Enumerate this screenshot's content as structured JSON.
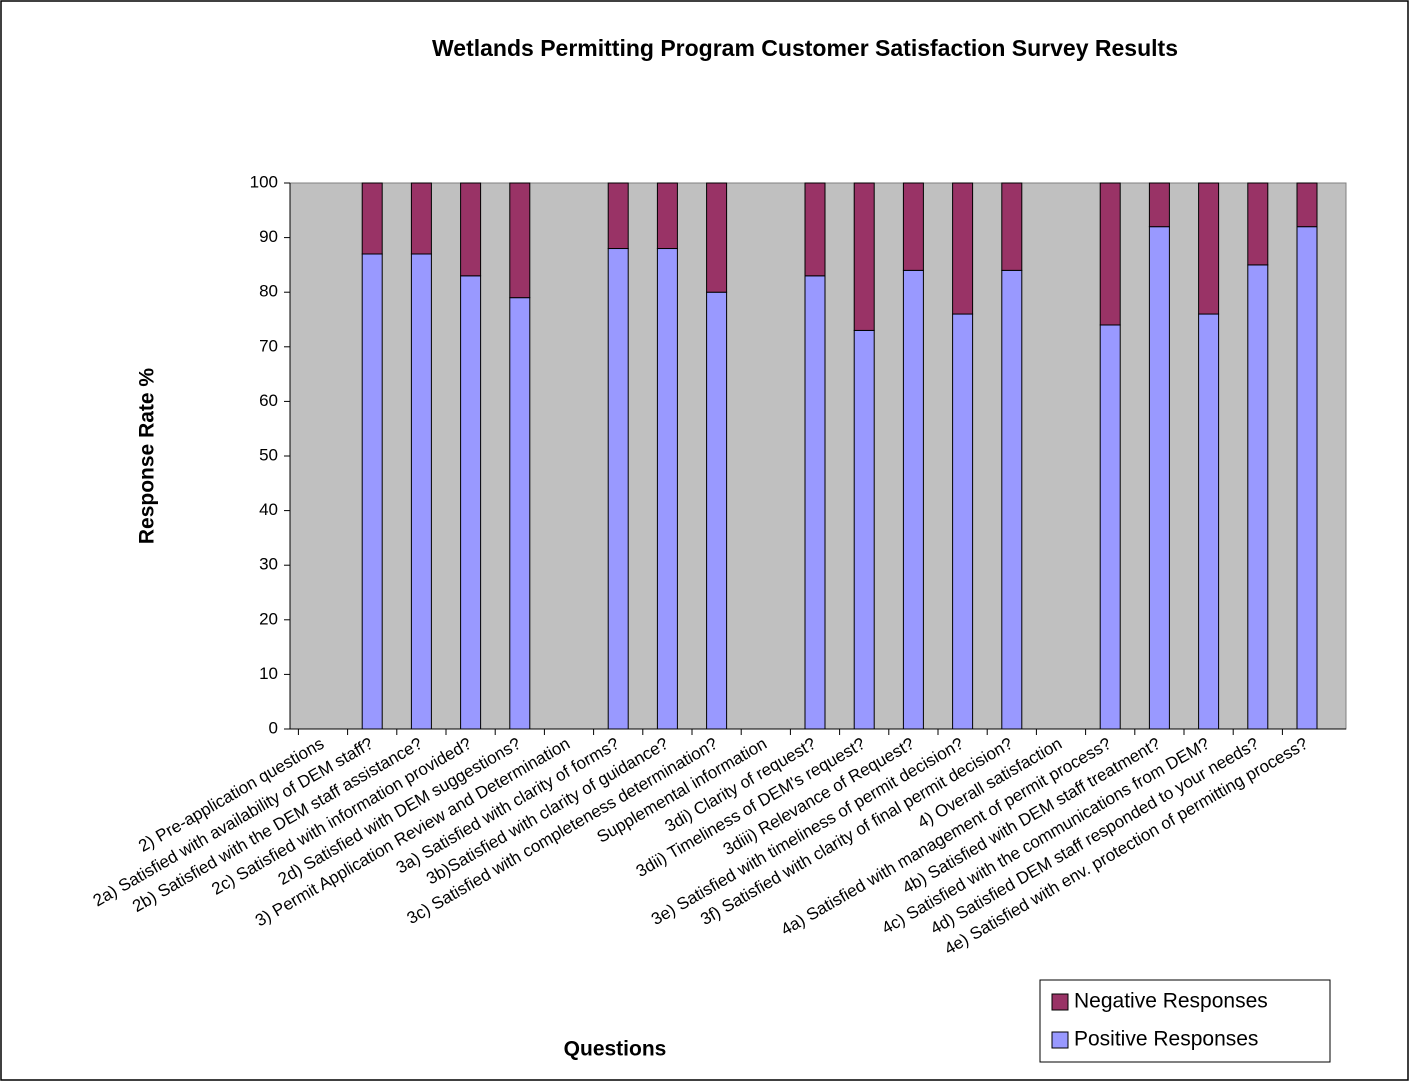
{
  "chart_data": {
    "type": "stacked_bar",
    "title": "Wetlands Permitting Program Customer Satisfaction Survey Results",
    "x_label": "Questions",
    "y_label": "Response Rate %",
    "categories": [
      "2) Pre-application questions",
      "2a) Satisfied with availability of DEM staff?",
      "2b) Satisfied with the DEM staff assistance?",
      "2c) Satisfied with information provided?",
      "2d) Satisfied with DEM suggestions?",
      "3) Permit Application Review and Determination",
      "3a) Satisfied with clarity of forms?",
      "3b)Satisfied with clarity of guidance?",
      "3c) Satisfied with completeness determination?",
      "Supplemental information",
      "3di) Clarity of request?",
      "3dii) Timeliness of DEM's request?",
      "3diii) Relevance of Request?",
      "3e) Satisfied with timeliness of permit decision?",
      "3f) Satisfied with clarity of final permit decision?",
      "4) Overall satisfaction",
      "4a) Satisfied with management of permit process?",
      "4b) Satisfied with DEM staff treatment?",
      "4c) Satisfied with the communications from DEM?",
      "4d) Satisfied DEM staff responded to your needs?",
      "4e) Satisfied with env. protection of permitting process?"
    ],
    "series": [
      {
        "name": "Positive Responses",
        "color": "#9999ff",
        "values": [
          null,
          87,
          87,
          83,
          79,
          null,
          88,
          88,
          80,
          null,
          83,
          73,
          84,
          76,
          84,
          null,
          74,
          92,
          76,
          85,
          92
        ]
      },
      {
        "name": "Negative Responses",
        "color": "#993366",
        "values": [
          null,
          13,
          13,
          17,
          21,
          null,
          12,
          12,
          20,
          null,
          17,
          27,
          16,
          24,
          16,
          null,
          26,
          8,
          24,
          15,
          8
        ]
      }
    ],
    "ylim": [
      0,
      100
    ],
    "yticks": [
      0,
      10,
      20,
      30,
      40,
      50,
      60,
      70,
      80,
      90,
      100
    ],
    "grid": false,
    "legend": "lower right"
  }
}
